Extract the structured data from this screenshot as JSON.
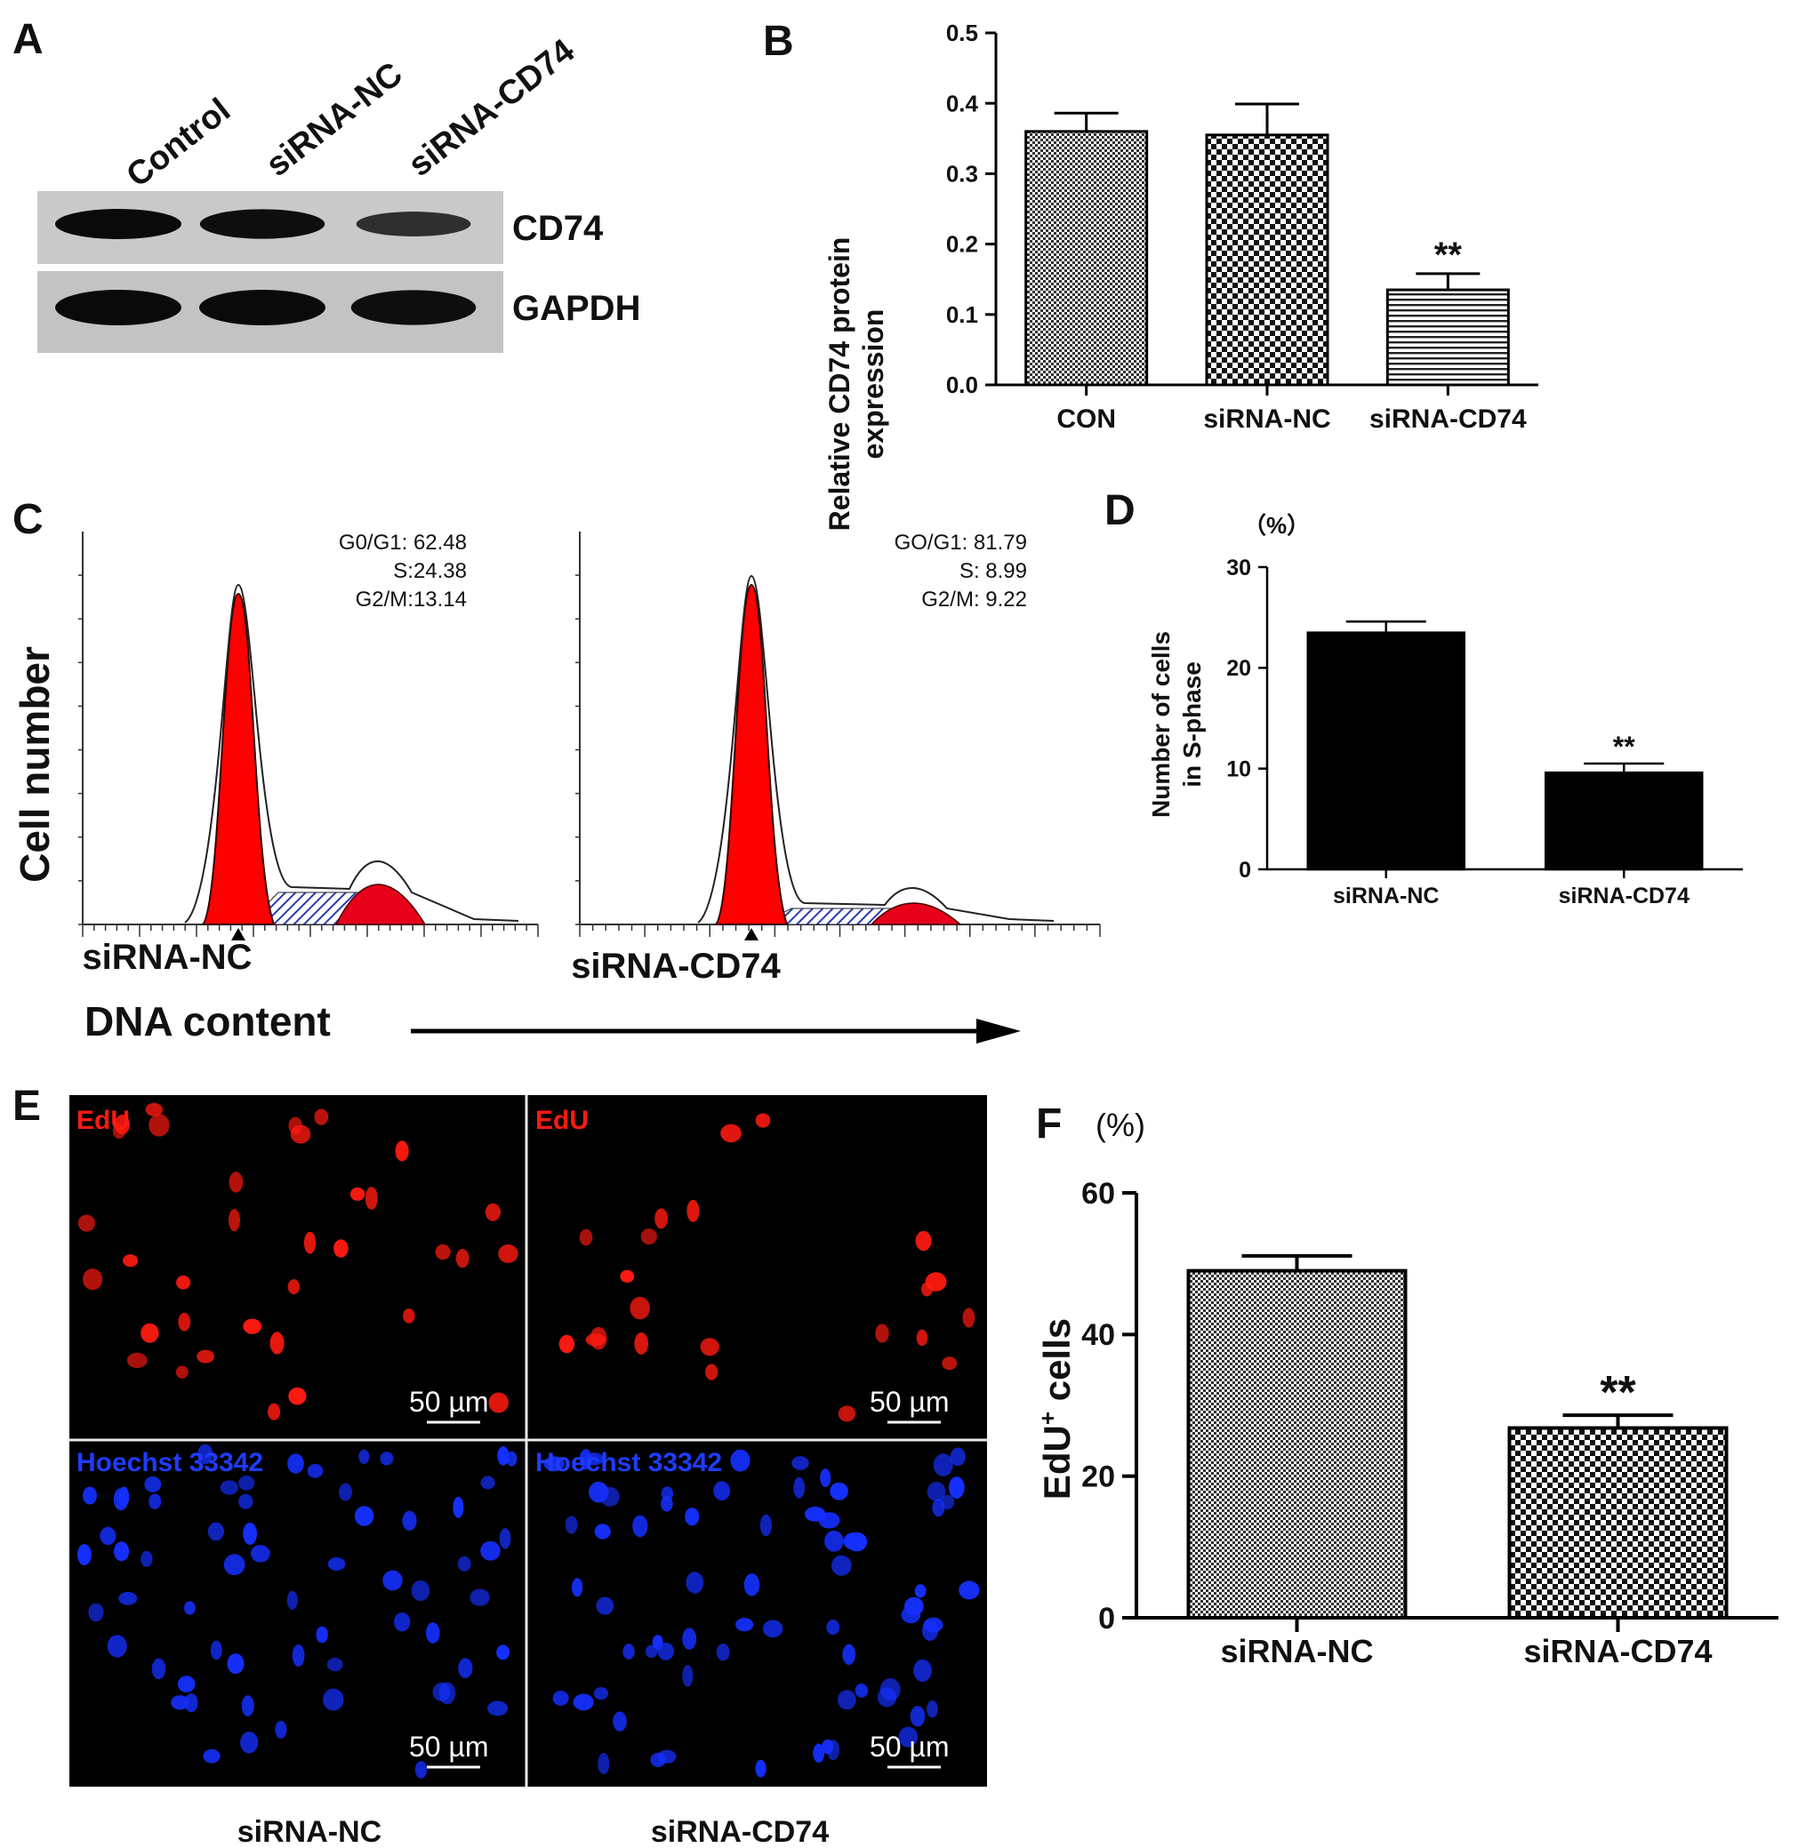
{
  "panel_labels": {
    "a": "A",
    "b": "B",
    "c": "C",
    "d": "D",
    "e": "E",
    "f": "F"
  },
  "panel_a": {
    "lanes": [
      "Control",
      "siRNA-NC",
      "siRNA-CD74"
    ],
    "bands": [
      "CD74",
      "GAPDH"
    ],
    "band_intensity": {
      "CD74": [
        1.0,
        0.95,
        0.55
      ],
      "GAPDH": [
        1.0,
        1.0,
        0.95
      ]
    }
  },
  "panel_c": {
    "ylabel": "Cell number",
    "xlabel": "DNA content",
    "plots": [
      {
        "label": "siRNA-NC",
        "stats": [
          "G0/G1: 62.48",
          "S:24.38",
          "G2/M:13.14"
        ]
      },
      {
        "label": "siRNA-CD74",
        "stats": [
          "GO/G1: 81.79",
          "S: 8.99",
          "G2/M: 9.22"
        ]
      }
    ]
  },
  "panel_e": {
    "channels": [
      "EdU",
      "Hoechst 33342"
    ],
    "columns": [
      "siRNA-NC",
      "siRNA-CD74"
    ],
    "scale_bar": "50 µm",
    "colors": {
      "edu": "#ff1a10",
      "hoechst": "#1530ff",
      "background": "#000000"
    }
  },
  "chart_data": [
    {
      "panel": "B",
      "type": "bar",
      "categories": [
        "CON",
        "siRNA-NC",
        "siRNA-CD74"
      ],
      "values": [
        0.36,
        0.355,
        0.135
      ],
      "errors": [
        0.026,
        0.044,
        0.023
      ],
      "annotations": [
        "",
        "",
        "**"
      ],
      "ylabel": "Relative CD74 protein expression",
      "ylabel_lines": [
        "Relative CD74 protein",
        "expression"
      ],
      "ylim": [
        0,
        0.5
      ],
      "yticks": [
        "0.0",
        "0.1",
        "0.2",
        "0.3",
        "0.4",
        "0.5"
      ],
      "patterns": [
        "fine-check",
        "coarse-check",
        "horizontal-lines"
      ]
    },
    {
      "panel": "D",
      "type": "bar",
      "categories": [
        "siRNA-NC",
        "siRNA-CD74"
      ],
      "values": [
        23.5,
        9.6
      ],
      "errors": [
        1.1,
        0.9
      ],
      "annotations": [
        "",
        "**"
      ],
      "unit": "（%）",
      "ylabel": "Number of cells in S-phase",
      "ylabel_lines": [
        "Number of cells",
        "in S-phase"
      ],
      "ylim": [
        0,
        30
      ],
      "yticks": [
        "0",
        "10",
        "20",
        "30"
      ],
      "patterns": [
        "solid",
        "solid"
      ]
    },
    {
      "panel": "F",
      "type": "bar",
      "categories": [
        "siRNA-NC",
        "siRNA-CD74"
      ],
      "values": [
        49.0,
        26.8
      ],
      "errors": [
        2.1,
        1.8
      ],
      "annotations": [
        "",
        "**"
      ],
      "unit": "(%)",
      "ylabel": "EdU",
      "ylabel_sup": "+",
      "ylabel_tail": " cells",
      "ylim": [
        0,
        60
      ],
      "yticks": [
        "0",
        "20",
        "40",
        "60"
      ],
      "patterns": [
        "fine-check",
        "coarse-check"
      ]
    }
  ]
}
